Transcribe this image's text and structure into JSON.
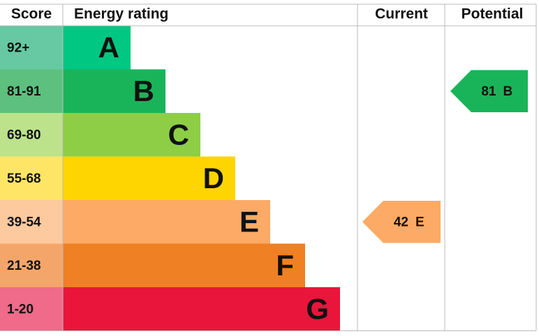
{
  "headers": {
    "score": "Score",
    "rating": "Energy rating",
    "current": "Current",
    "potential": "Potential"
  },
  "bands": [
    {
      "score": "92+",
      "letter": "A",
      "color": "#00c781",
      "light": "#66c9a3"
    },
    {
      "score": "81-91",
      "letter": "B",
      "color": "#19b459",
      "light": "#5dc07f"
    },
    {
      "score": "69-80",
      "letter": "C",
      "color": "#8dce46",
      "light": "#bce28c"
    },
    {
      "score": "55-68",
      "letter": "D",
      "color": "#ffd500",
      "light": "#ffe566"
    },
    {
      "score": "39-54",
      "letter": "E",
      "color": "#fcaa65",
      "light": "#fdc99e"
    },
    {
      "score": "21-38",
      "letter": "F",
      "color": "#ef8023",
      "light": "#f4a66a"
    },
    {
      "score": "1-20",
      "letter": "G",
      "color": "#e9153b",
      "light": "#f06a89"
    }
  ],
  "current": {
    "value": 42,
    "rating": "E"
  },
  "potential": {
    "value": 81,
    "rating": "B"
  }
}
